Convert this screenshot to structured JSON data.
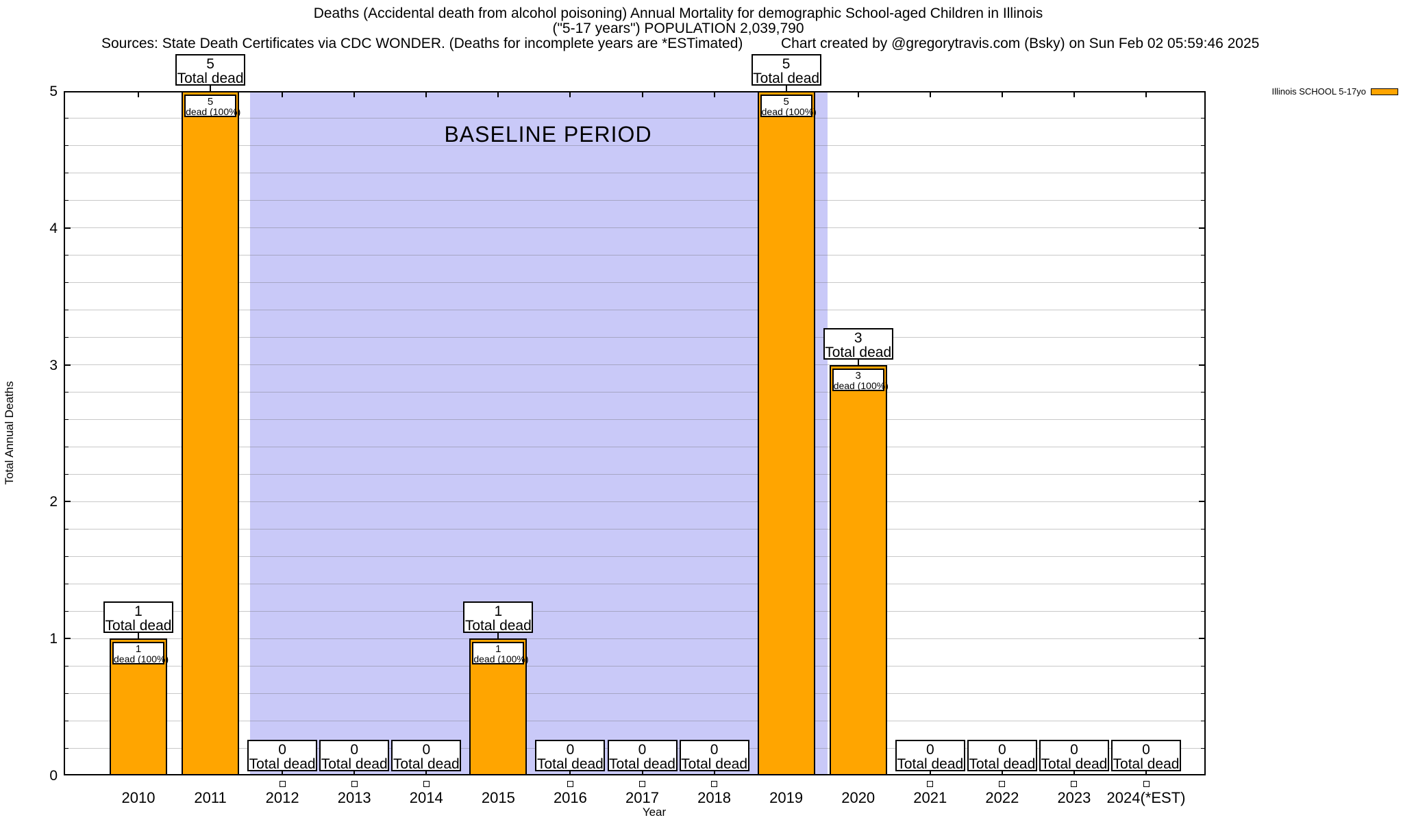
{
  "chart_data": {
    "type": "bar",
    "title_line1": "Deaths (Accidental death from alcohol poisoning) Annual Mortality for demographic School-aged Children in Illinois",
    "title_line2": "(\"5-17 years\") POPULATION 2,039,790",
    "sources_note": "Sources: State Death Certificates via CDC WONDER. (Deaths for incomplete years are *ESTimated)",
    "credit_note": "Chart created by @gregorytravis.com (Bsky) on Sun Feb 02 05:59:46 2025",
    "xlabel": "Year",
    "ylabel": "Total Annual Deaths",
    "ylim": [
      0,
      5
    ],
    "yticks": [
      0,
      1,
      2,
      3,
      4,
      5
    ],
    "minor_grid_step": 0.2,
    "grid": true,
    "categories": [
      "2010",
      "2011",
      "2012",
      "2013",
      "2014",
      "2015",
      "2016",
      "2017",
      "2018",
      "2019",
      "2020",
      "2021",
      "2022",
      "2023",
      "2024(*EST)"
    ],
    "series": [
      {
        "name": "Illinois SCHOOL 5-17yo",
        "color": "#FFA500",
        "values": [
          1,
          5,
          0,
          0,
          0,
          1,
          0,
          0,
          0,
          5,
          3,
          0,
          0,
          0,
          0
        ]
      }
    ],
    "bar_top_label_suffix": "Total dead",
    "bar_inner_label_suffix": "dead (100%)",
    "baseline": {
      "label": "BASELINE PERIOD",
      "start_category": "2012",
      "end_category": "2019",
      "color": "#C9C9F8"
    },
    "legend": {
      "label": "Illinois SCHOOL 5-17yo",
      "swatch_color": "#FFA500",
      "position": "top-right-outside"
    }
  }
}
